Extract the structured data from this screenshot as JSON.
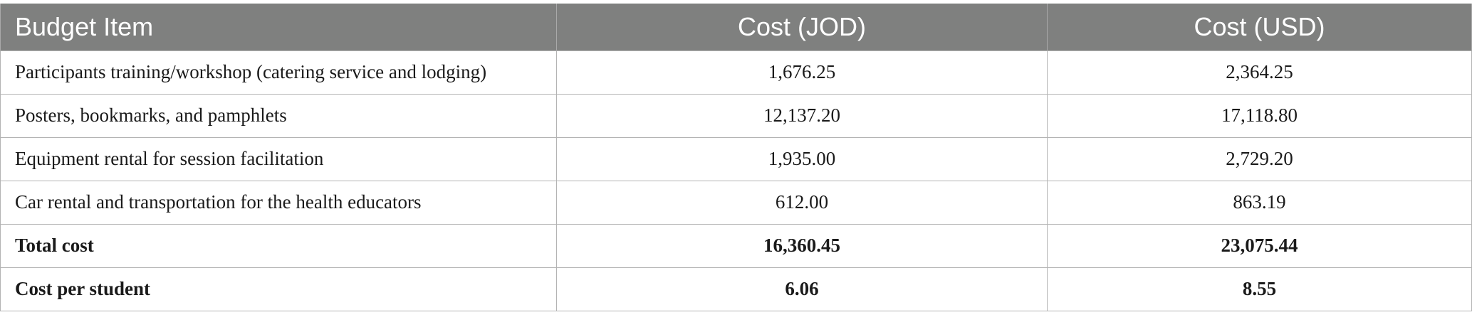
{
  "table": {
    "headers": [
      "Budget Item",
      "Cost (JOD)",
      "Cost (USD)"
    ],
    "rows": [
      {
        "item": "Participants training/workshop (catering service and lodging)",
        "jod": "1,676.25",
        "usd": "2,364.25",
        "bold": false
      },
      {
        "item": "Posters, bookmarks, and pamphlets",
        "jod": "12,137.20",
        "usd": "17,118.80",
        "bold": false
      },
      {
        "item": "Equipment rental for session facilitation",
        "jod": "1,935.00",
        "usd": "2,729.20",
        "bold": false
      },
      {
        "item": "Car rental and transportation for the health educators",
        "jod": "612.00",
        "usd": "863.19",
        "bold": false
      },
      {
        "item": "Total cost",
        "jod": "16,360.45",
        "usd": "23,075.44",
        "bold": true
      },
      {
        "item": "Cost per student",
        "jod": "6.06",
        "usd": "8.55",
        "bold": true
      }
    ]
  },
  "colors": {
    "header_background": "#7f807f",
    "header_text": "#ffffff",
    "border": "#b3b3b3"
  }
}
